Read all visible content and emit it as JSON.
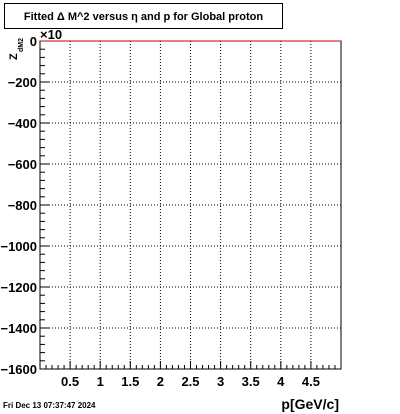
{
  "chart_data": {
    "type": "line",
    "title": "Fitted Δ M^2 versus η and p for Global proton",
    "xlabel": "p[GeV/c]",
    "ylabel_main": "Z",
    "ylabel_sub": "dM2",
    "y_exponent": "×10",
    "xlim": [
      0,
      5
    ],
    "ylim": [
      -1600,
      0
    ],
    "x_ticks": [
      0.5,
      1,
      1.5,
      2,
      2.5,
      3,
      3.5,
      4,
      4.5
    ],
    "x_tick_labels": [
      "0.5",
      "1",
      "1.5",
      "2",
      "2.5",
      "3",
      "3.5",
      "4",
      "4.5"
    ],
    "y_ticks": [
      0,
      -200,
      -400,
      -600,
      -800,
      -1000,
      -1200,
      -1400,
      -1600
    ],
    "y_tick_labels": [
      "0",
      "−200",
      "−400",
      "−600",
      "−800",
      "−1000",
      "−1200",
      "−1400",
      "−1600"
    ],
    "grid": true,
    "series": [
      {
        "color": "#cc0000",
        "x": [
          0,
          5
        ],
        "y": [
          0,
          0
        ]
      }
    ]
  },
  "footer": {
    "timestamp": "Fri Dec 13 07:37:47 2024"
  }
}
